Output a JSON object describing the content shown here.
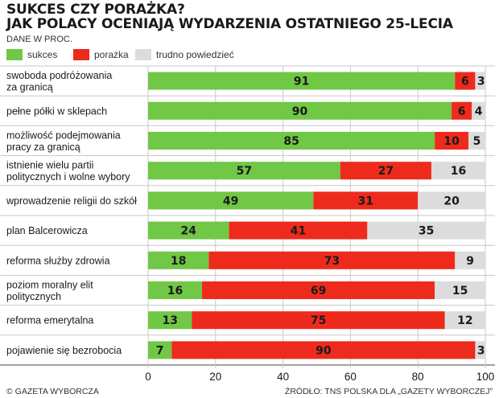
{
  "header": {
    "title_line1": "SUKCES CZY PORAŻKA?",
    "title_line2": "JAK POLACY OCENIAJĄ WYDARZENIA OSTATNIEGO 25-LECIA",
    "unit": "DANE W PROC."
  },
  "legend": [
    {
      "label": "sukces",
      "color": "#71c746"
    },
    {
      "label": "porażka",
      "color": "#ee2a1d"
    },
    {
      "label": "trudno powiedzieć",
      "color": "#dcdcdc"
    }
  ],
  "chart_data": {
    "type": "bar",
    "orientation": "horizontal",
    "stacked": true,
    "categories": [
      [
        "swoboda podróżowania",
        "za granicą"
      ],
      [
        "pełne półki w sklepach"
      ],
      [
        "możliwość podejmowania",
        "pracy za granicą"
      ],
      [
        "istnienie wielu partii",
        "politycznych i wolne wybory"
      ],
      [
        "wprowadzenie religii do szkół"
      ],
      [
        "plan Balcerowicza"
      ],
      [
        "reforma służby zdrowia"
      ],
      [
        "poziom moralny elit",
        "politycznych"
      ],
      [
        "reforma emerytalna"
      ],
      [
        "pojawienie się bezrobocia"
      ]
    ],
    "series": [
      {
        "name": "sukces",
        "color": "#71c746",
        "values": [
          91,
          90,
          85,
          57,
          49,
          24,
          18,
          16,
          13,
          7
        ]
      },
      {
        "name": "porażka",
        "color": "#ee2a1d",
        "values": [
          6,
          6,
          10,
          27,
          31,
          41,
          73,
          69,
          75,
          90
        ]
      },
      {
        "name": "trudno powiedzieć",
        "color": "#dcdcdc",
        "values": [
          3,
          4,
          5,
          16,
          20,
          35,
          9,
          15,
          12,
          3
        ]
      }
    ],
    "xlim": [
      0,
      100
    ],
    "xticks": [
      0,
      20,
      40,
      60,
      80,
      100
    ],
    "grid": true
  },
  "footer": {
    "left": "© GAZETA WYBORCZA",
    "right": "ŹRÓDŁO: TNS POLSKA DLA „GAZETY WYBORCZEJ”"
  }
}
